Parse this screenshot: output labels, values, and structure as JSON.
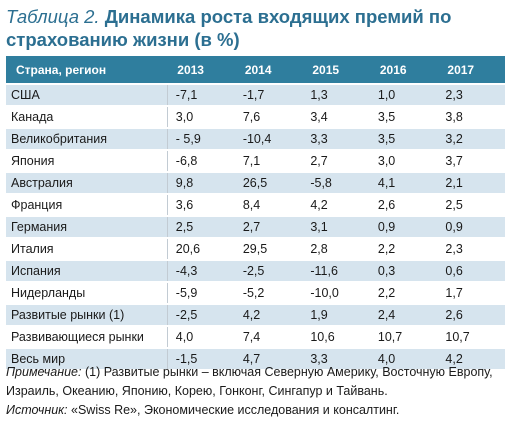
{
  "title": {
    "lead": "Таблица 2.",
    "main": "Динамика роста входящих премий по страхованию жизни (в %)"
  },
  "table": {
    "headers": [
      "Страна, регион",
      "2013",
      "2014",
      "2015",
      "2016",
      "2017"
    ],
    "rows": [
      {
        "name": "США",
        "values": [
          "-7,1",
          "-1,7",
          "1,3",
          "1,0",
          "2,3"
        ]
      },
      {
        "name": "Канада",
        "values": [
          "3,0",
          "7,6",
          "3,4",
          "3,5",
          "3,8"
        ]
      },
      {
        "name": "Великобритания",
        "values": [
          "- 5,9",
          "-10,4",
          "3,3",
          "3,5",
          "3,2"
        ]
      },
      {
        "name": "Япония",
        "values": [
          "-6,8",
          "7,1",
          "2,7",
          "3,0",
          "3,7"
        ]
      },
      {
        "name": "Австралия",
        "values": [
          "9,8",
          "26,5",
          "-5,8",
          "4,1",
          "2,1"
        ]
      },
      {
        "name": "Франция",
        "values": [
          "3,6",
          "8,4",
          "4,2",
          "2,6",
          "2,5"
        ]
      },
      {
        "name": "Германия",
        "values": [
          "2,5",
          "2,7",
          "3,1",
          "0,9",
          "0,9"
        ]
      },
      {
        "name": "Италия",
        "values": [
          "20,6",
          "29,5",
          "2,8",
          "2,2",
          "2,3"
        ]
      },
      {
        "name": "Испания",
        "values": [
          "-4,3",
          "-2,5",
          "-11,6",
          "0,3",
          "0,6"
        ]
      },
      {
        "name": "Нидерланды",
        "values": [
          "-5,9",
          "-5,2",
          "-10,0",
          "2,2",
          "1,7"
        ]
      },
      {
        "name": "Развитые рынки (1)",
        "values": [
          "-2,5",
          "4,2",
          "1,9",
          "2,4",
          "2,6"
        ]
      },
      {
        "name": "Развивающиеся рынки",
        "values": [
          "4,0",
          "7,4",
          "10,6",
          "10,7",
          "10,7"
        ]
      },
      {
        "name": "Весь мир",
        "values": [
          "-1,5",
          "4,7",
          "3,3",
          "4,0",
          "4,2"
        ]
      }
    ]
  },
  "note": {
    "label": "Примечание:",
    "text": "(1) Развитые рынки – включая Северную Америку, Восточную Европу, Израиль, Океанию, Японию, Корею, Гонконг, Сингапур и Тайвань.",
    "source_label": "Источник:",
    "source_text": "«Swiss Re», Экономические исследования и консалтинг."
  }
}
